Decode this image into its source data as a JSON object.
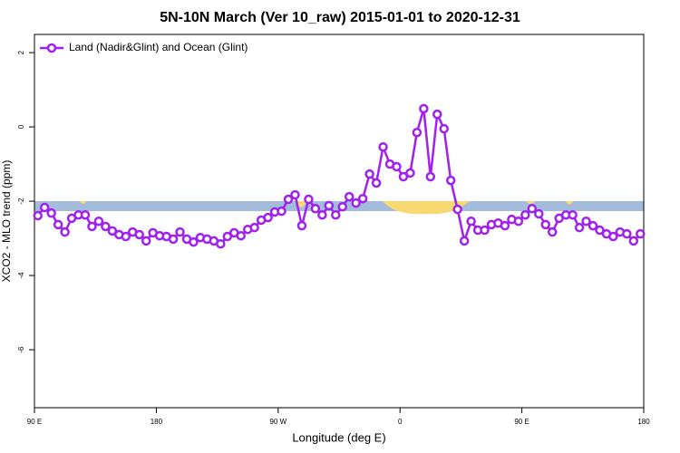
{
  "chart_data": {
    "type": "line",
    "title": "5N-10N March (Ver 10_raw)   2015-01-01 to 2020-12-31",
    "x_label": "Longitude (deg E)",
    "y_label": "XCO2 - MLO trend (ppm)",
    "xlim": [
      90,
      540
    ],
    "ylim": [
      -7.56,
      2.49
    ],
    "xticks": [
      {
        "value": 90,
        "label": "90 E"
      },
      180,
      {
        "value": 270,
        "label": "90 W"
      },
      {
        "value": 360,
        "label": "0"
      },
      {
        "value": 450,
        "label": "90 E"
      },
      {
        "value": 540,
        "label": "180"
      }
    ],
    "yticks": [
      -6,
      -4,
      -2,
      0,
      2
    ],
    "legend": "top-left",
    "x": [
      92.5,
      97.5,
      102.5,
      107.5,
      112.5,
      117.5,
      122.5,
      127.5,
      132.5,
      137.5,
      142.5,
      147.5,
      152.5,
      157.5,
      162.5,
      167.5,
      172.5,
      177.5,
      182.5,
      187.5,
      192.5,
      197.5,
      202.5,
      207.5,
      212.5,
      217.5,
      222.5,
      227.5,
      232.5,
      237.5,
      242.5,
      247.5,
      252.5,
      257.5,
      262.5,
      267.5,
      272.5,
      277.5,
      282.5,
      287.5,
      292.5,
      297.5,
      302.5,
      307.5,
      312.5,
      317.5,
      322.5,
      327.5,
      332.5,
      337.5,
      342.5,
      347.5,
      352.5,
      357.5,
      362.5,
      367.5,
      372.5,
      377.5,
      382.5,
      387.5,
      392.5,
      397.5,
      402.5,
      407.5,
      412.5,
      417.5,
      422.5,
      427.5,
      432.5,
      437.5,
      442.5,
      447.5,
      452.5,
      457.5,
      462.5,
      467.5,
      472.5,
      477.5,
      482.5,
      487.5,
      492.5,
      497.5,
      502.5,
      507.5,
      512.5,
      517.5,
      522.5,
      527.5,
      532.5,
      537.5
    ],
    "series": [
      {
        "name": "Land (Nadir&Glint) and Ocean (Glint)",
        "color": "#a020f0",
        "values": [
          -2.39,
          -2.17,
          -2.32,
          -2.63,
          -2.83,
          -2.46,
          -2.37,
          -2.37,
          -2.68,
          -2.54,
          -2.68,
          -2.8,
          -2.9,
          -2.95,
          -2.83,
          -2.9,
          -3.07,
          -2.85,
          -2.93,
          -2.95,
          -3.02,
          -2.83,
          -3.02,
          -3.1,
          -2.98,
          -3.02,
          -3.07,
          -3.15,
          -2.95,
          -2.85,
          -2.93,
          -2.76,
          -2.71,
          -2.51,
          -2.44,
          -2.29,
          -2.27,
          -1.95,
          -1.83,
          -2.66,
          -1.95,
          -2.2,
          -2.37,
          -2.12,
          -2.37,
          -2.15,
          -1.88,
          -2.05,
          -1.93,
          -1.27,
          -1.51,
          -0.54,
          -1.0,
          -1.07,
          -1.34,
          -1.24,
          -0.15,
          0.49,
          -1.34,
          0.34,
          -0.05,
          -1.44,
          -2.22,
          -3.07,
          -2.54,
          -2.78,
          -2.78,
          -2.63,
          -2.59,
          -2.66,
          -2.49,
          -2.54,
          -2.37,
          -2.2,
          -2.34,
          -2.63,
          -2.83,
          -2.46,
          -2.37,
          -2.37,
          -2.71,
          -2.54,
          -2.66,
          -2.78,
          -2.88,
          -2.95,
          -2.83,
          -2.88,
          -3.07,
          -2.88
        ]
      }
    ]
  }
}
